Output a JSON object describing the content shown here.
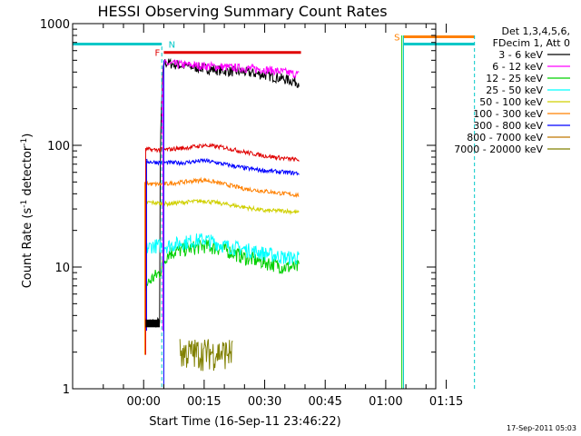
{
  "chart_data": {
    "type": "line",
    "title": "HESSI Observing Summary Count Rates",
    "xlabel": "Start Time (16-Sep-11 23:46:22)",
    "ylabel_main": "Count Rate (s",
    "ylabel_sup1": "-1",
    "ylabel_mid": " detector",
    "ylabel_sup2": "-1",
    "ylabel_end": ")",
    "yscale": "log",
    "ylim": [
      1,
      1000
    ],
    "xlim_minutes": [
      -17.6,
      72.4
    ],
    "x_ticks": [
      {
        "m": 0,
        "label": "00:00"
      },
      {
        "m": 15,
        "label": "00:15"
      },
      {
        "m": 30,
        "label": "00:30"
      },
      {
        "m": 45,
        "label": "00:45"
      },
      {
        "m": 60,
        "label": "01:00"
      },
      {
        "m": 75,
        "label": "01:15"
      }
    ],
    "y_ticks": [
      {
        "v": 1,
        "label": "1"
      },
      {
        "v": 10,
        "label": "10"
      },
      {
        "v": 100,
        "label": "100"
      },
      {
        "v": 1000,
        "label": "1000"
      }
    ],
    "legend_header": [
      "Det 1,3,4,5,6,",
      "FDecim 1, Att 0"
    ],
    "series": [
      {
        "name": "3 - 6 keV",
        "color": "#000000",
        "x": [
          0.5,
          4.0,
          5.0,
          10,
          15,
          20,
          25,
          30,
          35,
          38.5
        ],
        "y": [
          3.5,
          3.5,
          480,
          450,
          430,
          410,
          400,
          380,
          350,
          330
        ],
        "noise": 0.05
      },
      {
        "name": "6 - 12 keV",
        "color": "#ff00ff",
        "x": [
          4.5,
          5.0,
          10,
          15,
          20,
          25,
          30,
          35,
          38.5
        ],
        "y": [
          130,
          470,
          460,
          450,
          440,
          430,
          420,
          400,
          380
        ],
        "noise": 0.04
      },
      {
        "name": "12 - 25 keV",
        "color": "#00d000",
        "x": [
          0.5,
          2,
          4,
          6,
          10,
          15,
          20,
          25,
          30,
          35,
          38.5
        ],
        "y": [
          7,
          8,
          9,
          13,
          14,
          15,
          14,
          12,
          11,
          10,
          10
        ],
        "noise": 0.07
      },
      {
        "name": "25 - 50 keV",
        "color": "#00ffff",
        "x": [
          0.5,
          2,
          4,
          6,
          10,
          15,
          20,
          25,
          30,
          35,
          38.5
        ],
        "y": [
          14,
          15,
          15,
          15,
          16,
          17,
          15,
          14,
          13,
          12,
          12
        ],
        "noise": 0.07
      },
      {
        "name": "50 - 100 keV",
        "color": "#d0d000",
        "x": [
          0.5,
          2,
          5,
          10,
          15,
          20,
          25,
          30,
          35,
          38.5
        ],
        "y": [
          34,
          34,
          33,
          34,
          35,
          33,
          31,
          29,
          29,
          28
        ],
        "noise": 0.02
      },
      {
        "name": "100 - 300 keV",
        "color": "#ff8000",
        "x": [
          0.5,
          2,
          5,
          10,
          15,
          20,
          25,
          30,
          35,
          38.5
        ],
        "y": [
          49,
          48,
          48,
          50,
          52,
          48,
          44,
          42,
          40,
          39
        ],
        "noise": 0.02
      },
      {
        "name": "300 - 800 keV",
        "color": "#0000ff",
        "x": [
          0.5,
          2,
          5,
          10,
          15,
          20,
          25,
          30,
          35,
          38.5
        ],
        "y": [
          74,
          73,
          72,
          72,
          75,
          70,
          65,
          62,
          60,
          59
        ],
        "noise": 0.02
      },
      {
        "name": "800 - 7000 keV",
        "color": "#c07800",
        "x": [],
        "y": []
      },
      {
        "name": "7000 - 20000 keV",
        "color": "#808000",
        "x": [
          9,
          10,
          12,
          14,
          16,
          18,
          20,
          22
        ],
        "y": [
          2.0,
          2.0,
          2.0,
          2.0,
          2.0,
          2.0,
          2.0,
          2.0
        ],
        "noise": 0.15
      }
    ],
    "red_series": {
      "name": "",
      "color": "#e00000",
      "x": [
        0.5,
        2,
        5,
        10,
        15,
        20,
        25,
        30,
        35,
        38.5
      ],
      "y": [
        93,
        92,
        92,
        95,
        100,
        96,
        88,
        82,
        78,
        76
      ],
      "noise": 0.02
    },
    "flags": [
      {
        "label": "F",
        "color": "#e00000",
        "x0": 5.0,
        "x1": 39.0,
        "y": 580
      },
      {
        "label": "N",
        "color": "#00c8c8",
        "x0": -17.6,
        "x1": 4.5,
        "y": 680
      },
      {
        "label": "N2",
        "color": "#00c8c8",
        "x0": 64.4,
        "x1": 82.0,
        "y": 680
      },
      {
        "label": "S",
        "color": "#ff8000",
        "x0": 64.4,
        "x1": 82.0,
        "y": 780
      }
    ],
    "markers": {
      "F": "F",
      "N": "N",
      "S": "S"
    },
    "footer_date": "17-Sep-2011 05:03"
  }
}
